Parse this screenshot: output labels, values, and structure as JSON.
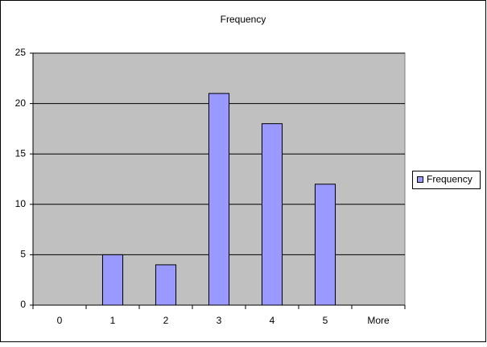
{
  "chart_data": {
    "type": "bar",
    "title": "Frequency",
    "categories": [
      "0",
      "1",
      "2",
      "3",
      "4",
      "5",
      "More"
    ],
    "series": [
      {
        "name": "Frequency",
        "color": "#9999ff",
        "values": [
          0,
          5,
          4,
          21,
          18,
          12,
          0
        ]
      }
    ],
    "ylim": [
      0,
      25
    ],
    "yticks": [
      0,
      5,
      10,
      15,
      20,
      25
    ],
    "grid": true,
    "legend": "right"
  }
}
